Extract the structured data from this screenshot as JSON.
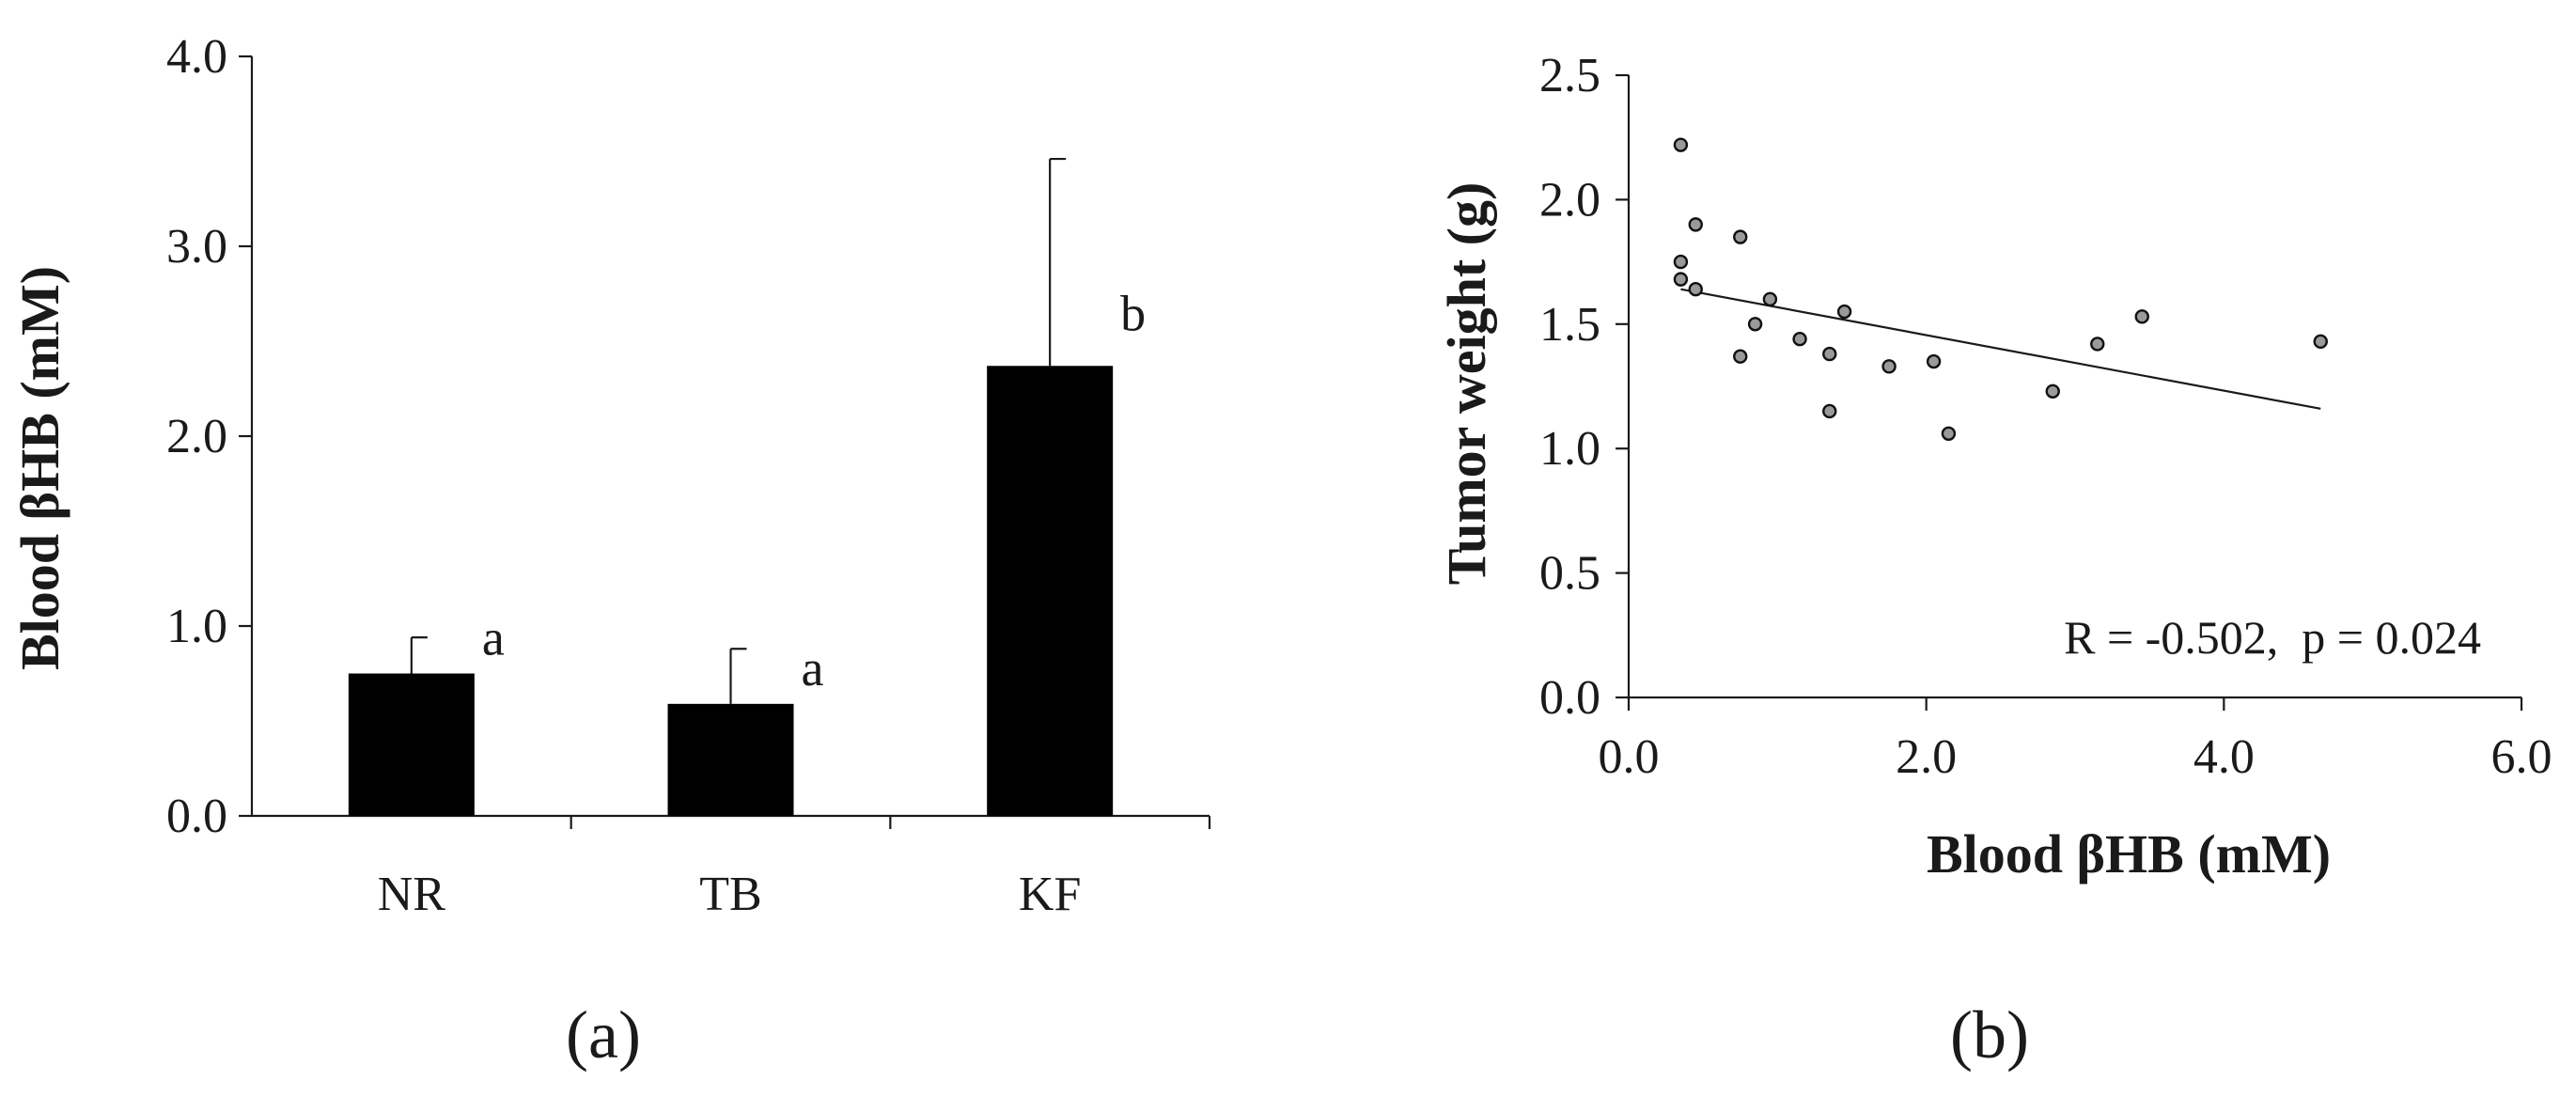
{
  "chart_data": [
    {
      "type": "bar",
      "panel_label": "(a)",
      "categories": [
        "NR",
        "TB",
        "KF"
      ],
      "values": [
        0.75,
        0.59,
        2.37
      ],
      "error_upper": [
        0.19,
        0.29,
        1.09
      ],
      "significance_letters": [
        "a",
        "a",
        "b"
      ],
      "bar_color": "#000000",
      "ylabel": "Blood βHB (mM)",
      "xlabel": "",
      "ylim": [
        0.0,
        4.0
      ],
      "yticks": [
        "0.0",
        "1.0",
        "2.0",
        "3.0",
        "4.0"
      ],
      "grid": false
    },
    {
      "type": "scatter",
      "panel_label": "(b)",
      "xlabel": "Blood βHB (mM)",
      "ylabel": "Tumor weight (g)",
      "xlim": [
        0.0,
        6.0
      ],
      "ylim": [
        0.0,
        2.5
      ],
      "xticks": [
        "0.0",
        "2.0",
        "4.0",
        "6.0"
      ],
      "yticks": [
        "0.0",
        "0.5",
        "1.0",
        "1.5",
        "2.0",
        "2.5"
      ],
      "points": [
        [
          0.35,
          2.22
        ],
        [
          0.35,
          1.75
        ],
        [
          0.35,
          1.68
        ],
        [
          0.45,
          1.9
        ],
        [
          0.45,
          1.64
        ],
        [
          0.75,
          1.85
        ],
        [
          0.75,
          1.37
        ],
        [
          0.85,
          1.5
        ],
        [
          0.95,
          1.6
        ],
        [
          1.15,
          1.44
        ],
        [
          1.35,
          1.38
        ],
        [
          1.35,
          1.15
        ],
        [
          1.45,
          1.55
        ],
        [
          1.75,
          1.33
        ],
        [
          2.05,
          1.35
        ],
        [
          2.15,
          1.06
        ],
        [
          2.85,
          1.23
        ],
        [
          3.15,
          1.42
        ],
        [
          3.45,
          1.53
        ],
        [
          4.65,
          1.43
        ]
      ],
      "trendline": {
        "x": [
          0.35,
          4.65
        ],
        "y": [
          1.64,
          1.16
        ]
      },
      "annotation": "R = -0.502,  p = 0.024",
      "grid": false
    }
  ]
}
